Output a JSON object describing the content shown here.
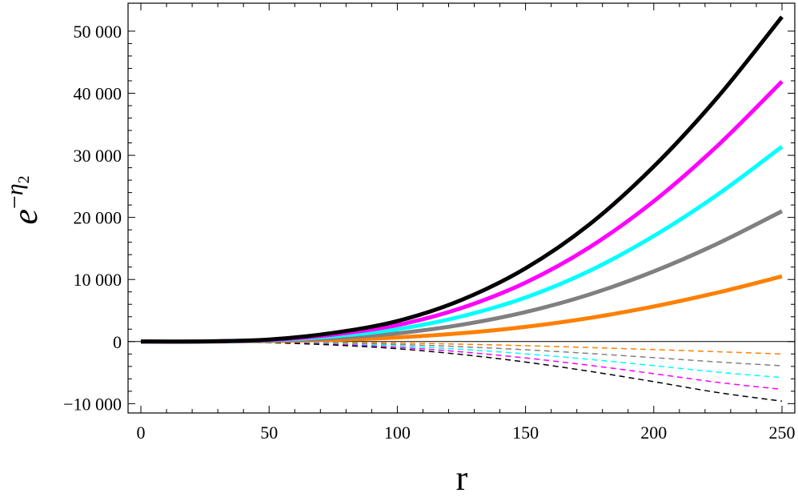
{
  "chart_data": {
    "type": "line",
    "xlabel": "r",
    "ylabel": {
      "base": "e",
      "sup_prefix": "−",
      "sup_symbol": "η",
      "sup_sub": "2"
    },
    "xlim": [
      -5,
      255
    ],
    "ylim": [
      -11500,
      54500
    ],
    "x_ticks": [
      0,
      50,
      100,
      150,
      200,
      250
    ],
    "x_tick_labels": [
      "0",
      "50",
      "100",
      "150",
      "200",
      "250"
    ],
    "y_ticks": [
      -10000,
      0,
      10000,
      20000,
      30000,
      40000,
      50000
    ],
    "y_tick_labels": [
      "−10 000",
      "0",
      "10 000",
      "20 000",
      "30 000",
      "40 000",
      "50 000"
    ],
    "grid": false,
    "legend": "none",
    "x": [
      0,
      25,
      50,
      75,
      100,
      125,
      150,
      175,
      200,
      225,
      250
    ],
    "series": [
      {
        "color": "#000000",
        "style": "solid",
        "values": [
          0,
          25,
          320,
          1400,
          3300,
          6700,
          11800,
          18900,
          28200,
          39400,
          52300
        ]
      },
      {
        "color": "#ff00ff",
        "style": "solid",
        "values": [
          0,
          20,
          260,
          1120,
          2650,
          5400,
          9500,
          15200,
          22600,
          31600,
          41900
        ]
      },
      {
        "color": "#00ffff",
        "style": "solid",
        "values": [
          0,
          15,
          200,
          840,
          2000,
          4050,
          7100,
          11400,
          17000,
          23700,
          31400
        ]
      },
      {
        "color": "#808080",
        "style": "solid",
        "values": [
          0,
          10,
          130,
          560,
          1330,
          2700,
          4750,
          7600,
          11300,
          15800,
          21000
        ]
      },
      {
        "color": "#ff8000",
        "style": "solid",
        "values": [
          0,
          5,
          65,
          280,
          670,
          1350,
          2370,
          3800,
          5650,
          7900,
          10500
        ]
      },
      {
        "color": "#ff8000",
        "style": "dashed",
        "values": [
          0,
          -5,
          -40,
          -110,
          -230,
          -420,
          -660,
          -960,
          -1290,
          -1640,
          -2000
        ]
      },
      {
        "color": "#808080",
        "style": "dashed",
        "values": [
          0,
          -10,
          -80,
          -220,
          -460,
          -830,
          -1320,
          -1920,
          -2590,
          -3290,
          -3900
        ]
      },
      {
        "color": "#00ffff",
        "style": "dashed",
        "values": [
          0,
          -15,
          -115,
          -330,
          -690,
          -1250,
          -1980,
          -2870,
          -3880,
          -4930,
          -5800
        ]
      },
      {
        "color": "#ff00ff",
        "style": "dashed",
        "values": [
          0,
          -20,
          -155,
          -440,
          -920,
          -1660,
          -2640,
          -3830,
          -5170,
          -6570,
          -7700
        ]
      },
      {
        "color": "#000000",
        "style": "dashed",
        "values": [
          0,
          -25,
          -190,
          -550,
          -1150,
          -2080,
          -3300,
          -4790,
          -6460,
          -8210,
          -9600
        ]
      }
    ]
  }
}
